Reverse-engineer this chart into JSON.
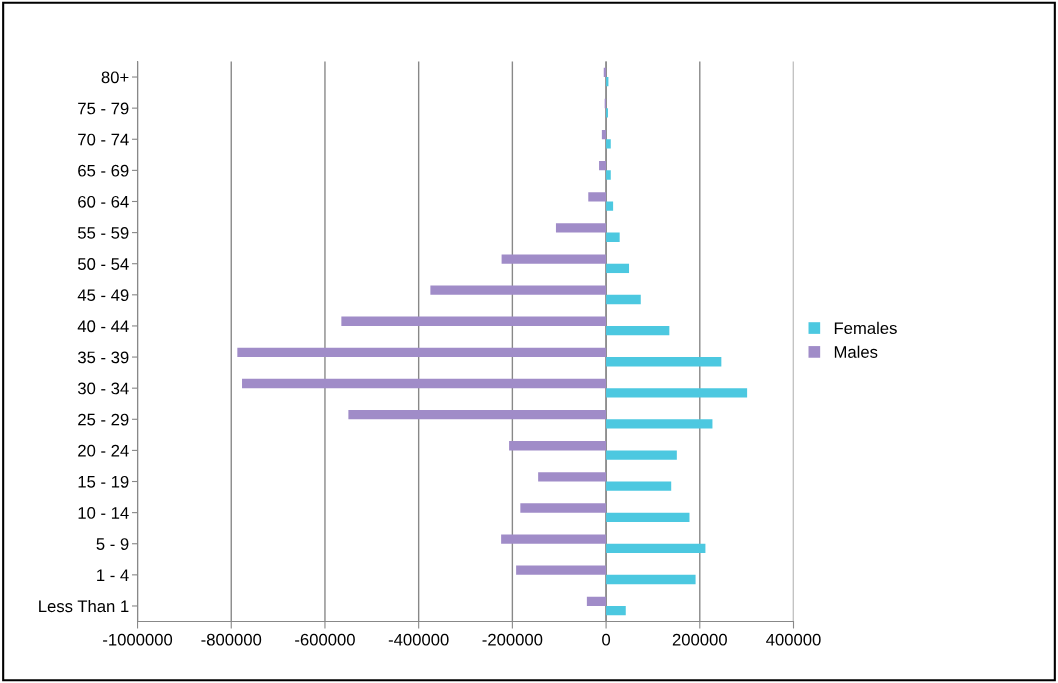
{
  "chart_data": {
    "type": "bar",
    "orientation": "horizontal",
    "categories": [
      "80+",
      "75 - 79",
      "70 - 74",
      "65 - 69",
      "60 - 64",
      "55 - 59",
      "50 - 54",
      "45 - 49",
      "40 - 44",
      "35 - 39",
      "30 - 34",
      "25 - 29",
      "20 - 24",
      "15 - 19",
      "10 - 14",
      "5 - 9",
      "1 - 4",
      "Less Than 1"
    ],
    "series": [
      {
        "name": "Females",
        "color": "#4cc8e0",
        "values": [
          5000,
          4000,
          10000,
          10000,
          15000,
          29000,
          49000,
          74000,
          135000,
          246000,
          301000,
          227000,
          151000,
          139000,
          178000,
          212000,
          191000,
          42000
        ]
      },
      {
        "name": "Males",
        "color": "#a08cc8",
        "values": [
          -5000,
          -3000,
          -9000,
          -15000,
          -38000,
          -107000,
          -223000,
          -375000,
          -565000,
          -787000,
          -777000,
          -550000,
          -207000,
          -145000,
          -183000,
          -224000,
          -192000,
          -41000
        ]
      }
    ],
    "xlim": [
      -1000000,
      400000
    ],
    "xticks": [
      -1000000,
      -800000,
      -600000,
      -400000,
      -200000,
      0,
      200000,
      400000
    ],
    "grid": "x",
    "legend": "right"
  }
}
